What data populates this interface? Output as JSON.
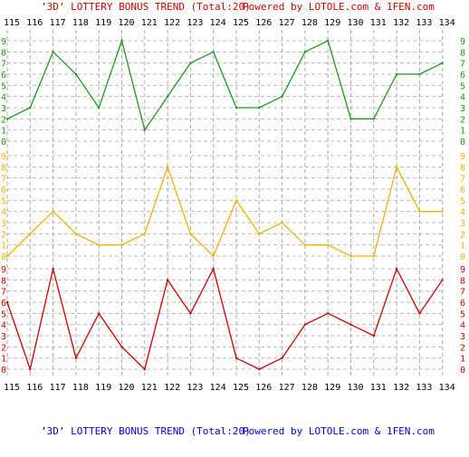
{
  "header": {
    "title": "’3D’ LOTTERY BONUS TREND (Total:20)",
    "credit": "Powered by LOTOLE.com & 1FEN.com",
    "title_color": "#cc0000"
  },
  "footer": {
    "title": "’3D’ LOTTERY BONUS TREND (Total:20)",
    "credit": "Powered by LOTOLE.com & 1FEN.com",
    "title_color": "#0000cc"
  },
  "chart_data": {
    "type": "line",
    "title": "’3D’ LOTTERY BONUS TREND (Total:20)",
    "categories": [
      "115",
      "116",
      "117",
      "118",
      "119",
      "120",
      "121",
      "122",
      "123",
      "124",
      "125",
      "126",
      "127",
      "128",
      "129",
      "130",
      "131",
      "132",
      "133",
      "134"
    ],
    "series": [
      {
        "color": "#1a9a1a",
        "values": [
          2,
          3,
          8,
          6,
          3,
          9,
          1,
          4,
          7,
          8,
          3,
          3,
          4,
          8,
          9,
          2,
          2,
          6,
          6,
          7
        ]
      },
      {
        "color": "#f0b400",
        "values": [
          0,
          2,
          4,
          2,
          1,
          1,
          2,
          8,
          2,
          0,
          5,
          2,
          3,
          1,
          1,
          0,
          0,
          8,
          4,
          4
        ]
      },
      {
        "color": "#cc0000",
        "values": [
          6,
          0,
          9,
          1,
          5,
          2,
          0,
          8,
          5,
          9,
          1,
          0,
          1,
          4,
          5,
          4,
          3,
          9,
          5,
          8
        ]
      }
    ],
    "y_tick_labels": [
      "0",
      "1",
      "2",
      "3",
      "4",
      "5",
      "6",
      "7",
      "8",
      "9"
    ],
    "ylim": [
      0,
      9
    ],
    "grid": true,
    "colors": {
      "grid_vertical": "#aaaaaa",
      "grid_horizontal": "#bbbbbb",
      "axis_text": "#000000",
      "frame": "#888888"
    }
  }
}
